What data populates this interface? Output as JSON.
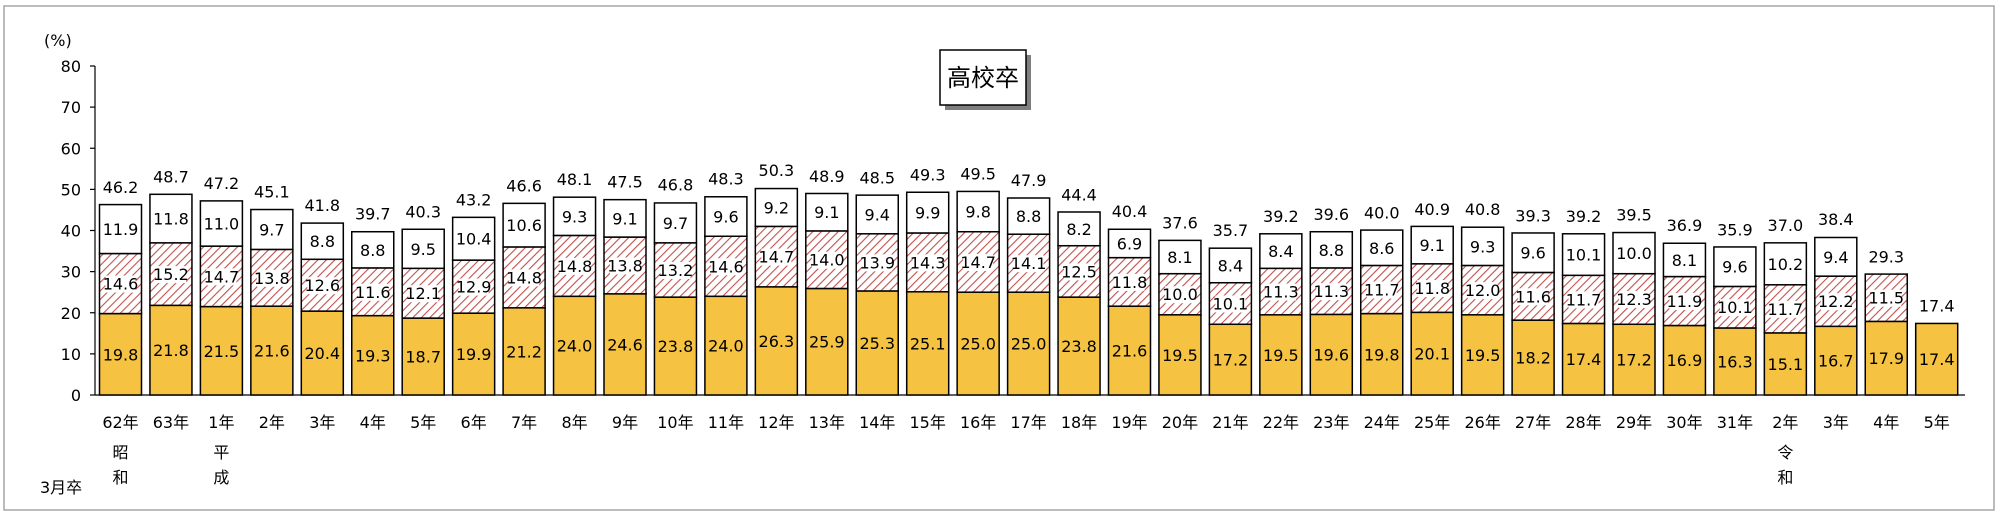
{
  "chart_data": {
    "type": "bar",
    "stacked": true,
    "title": "高校卒",
    "y_unit_label": "(%)",
    "ylim": [
      0,
      80
    ],
    "yticks": [
      0,
      10,
      20,
      30,
      40,
      50,
      60,
      70,
      80
    ],
    "row_label": "3月卒",
    "grid": false,
    "categories": [
      "62年",
      "63年",
      "1年",
      "2年",
      "3年",
      "4年",
      "5年",
      "6年",
      "7年",
      "8年",
      "9年",
      "10年",
      "11年",
      "12年",
      "13年",
      "14年",
      "15年",
      "16年",
      "17年",
      "18年",
      "19年",
      "20年",
      "21年",
      "22年",
      "23年",
      "24年",
      "25年",
      "26年",
      "27年",
      "28年",
      "29年",
      "30年",
      "31年",
      "2年",
      "3年",
      "4年",
      "5年"
    ],
    "era_labels": [
      {
        "index": 0,
        "text": "昭和"
      },
      {
        "index": 2,
        "text": "平成"
      },
      {
        "index": 33,
        "text": "令和"
      }
    ],
    "series": [
      {
        "values": [
          19.8,
          21.8,
          21.5,
          21.6,
          20.4,
          19.3,
          18.7,
          19.9,
          21.2,
          24.0,
          24.6,
          23.8,
          24.0,
          26.3,
          25.9,
          25.3,
          25.1,
          25.0,
          25.0,
          23.8,
          21.6,
          19.5,
          17.2,
          19.5,
          19.6,
          19.8,
          20.1,
          19.5,
          18.2,
          17.4,
          17.2,
          16.9,
          16.3,
          15.1,
          16.7,
          17.9,
          17.4
        ],
        "color": "#F5C242"
      },
      {
        "values": [
          14.6,
          15.2,
          14.7,
          13.8,
          12.6,
          11.6,
          12.1,
          12.9,
          14.8,
          14.8,
          13.8,
          13.2,
          14.6,
          14.7,
          14.0,
          13.9,
          14.3,
          14.7,
          14.1,
          12.5,
          11.8,
          10.0,
          10.1,
          11.3,
          11.3,
          11.7,
          11.8,
          12.0,
          11.6,
          11.7,
          12.3,
          11.9,
          10.1,
          11.7,
          12.2,
          11.5,
          null
        ],
        "color": "#C0504D"
      },
      {
        "values": [
          11.9,
          11.8,
          11.0,
          9.7,
          8.8,
          8.8,
          9.5,
          10.4,
          10.6,
          9.3,
          9.1,
          9.7,
          9.6,
          9.2,
          9.1,
          9.4,
          9.9,
          9.8,
          8.8,
          8.2,
          6.9,
          8.1,
          8.4,
          8.4,
          8.8,
          8.6,
          9.1,
          9.3,
          9.6,
          10.1,
          10.0,
          8.1,
          9.6,
          10.2,
          9.4,
          null,
          null
        ],
        "color": "#FFFFFF"
      }
    ],
    "totals": [
      46.2,
      48.7,
      47.2,
      45.1,
      41.8,
      39.7,
      40.3,
      43.2,
      46.6,
      48.1,
      47.5,
      46.8,
      48.3,
      50.3,
      48.9,
      48.5,
      49.3,
      49.5,
      47.9,
      44.4,
      40.4,
      37.6,
      35.7,
      39.2,
      39.6,
      40.0,
      40.9,
      40.8,
      39.3,
      39.2,
      39.5,
      36.9,
      35.9,
      37.0,
      38.4,
      29.3,
      17.4
    ]
  }
}
